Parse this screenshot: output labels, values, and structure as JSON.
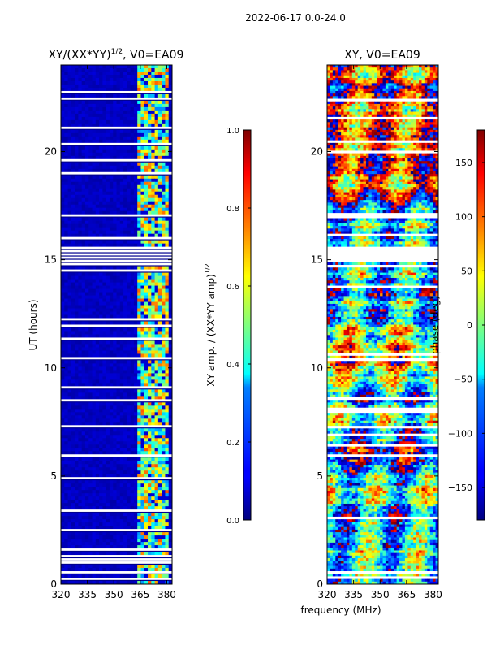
{
  "figure": {
    "suptitle": "2022-06-17 0.0-24.0",
    "shared_xlabel": "frequency (MHz)"
  },
  "chart_data": [
    {
      "type": "heatmap",
      "title": "XY/(XX*YY)",
      "title_superscript": "1/2",
      "title_suffix": ", V0=EA09",
      "xlabel": "",
      "ylabel": "UT (hours)",
      "xlim": [
        320,
        383
      ],
      "ylim": [
        0,
        24
      ],
      "xticks": [
        320,
        335,
        350,
        365,
        380
      ],
      "yticks": [
        0,
        5,
        10,
        15,
        20
      ],
      "colorbar": {
        "label": "XY amp. / (XX*YY amp)",
        "label_superscript": "1/2",
        "range": [
          0.0,
          1.0
        ],
        "ticks": [
          0.0,
          0.2,
          0.4,
          0.6,
          0.8,
          1.0
        ],
        "tick_labels": [
          "0.0",
          "0.2",
          "0.4",
          "0.6",
          "0.8",
          "1.0"
        ],
        "colormap": "jet"
      },
      "data_description_gaps_hours": [
        [
          0.5,
          0.55
        ],
        [
          7.25,
          7.35
        ],
        [
          14.85,
          15.6
        ],
        [
          17.0,
          17.15
        ]
      ],
      "bright_band_mhz": [
        363,
        381
      ]
    },
    {
      "type": "heatmap",
      "title": "XY, V0=EA09",
      "xlabel": "",
      "ylabel": "",
      "xlim": [
        320,
        383
      ],
      "ylim": [
        0,
        24
      ],
      "xticks": [
        320,
        335,
        350,
        365,
        380
      ],
      "yticks": [
        0,
        5,
        10,
        15,
        20
      ],
      "colorbar": {
        "label": "phase (deg)",
        "range": [
          -180,
          180
        ],
        "ticks": [
          -150,
          -100,
          -50,
          0,
          50,
          100,
          150
        ],
        "tick_labels": [
          "−150",
          "−100",
          "−50",
          "0",
          "50",
          "100",
          "150"
        ],
        "colormap": "jet"
      },
      "data_description_gaps_hours": [
        [
          0.5,
          0.55
        ],
        [
          7.25,
          7.35
        ],
        [
          14.85,
          15.6
        ],
        [
          17.0,
          17.15
        ]
      ]
    }
  ]
}
